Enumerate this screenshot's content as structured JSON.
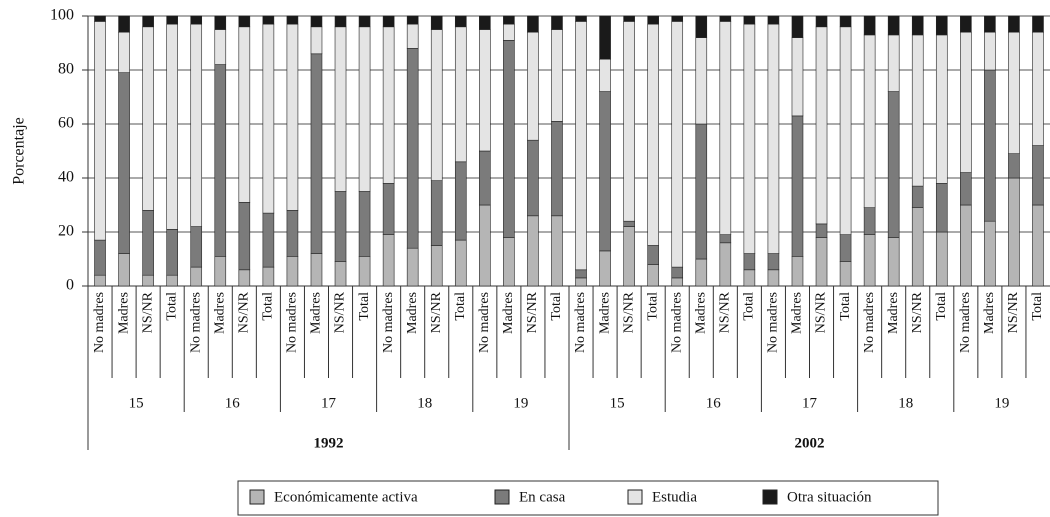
{
  "chart_data": {
    "type": "stacked-bar",
    "y_label": "Porcentaje",
    "categories": [
      "No madres",
      "Madres",
      "NS/NR",
      "Total",
      "No madres",
      "Madres",
      "NS/NR",
      "Total",
      "No madres",
      "Madres",
      "NS/NR",
      "Total",
      "No madres",
      "Madres",
      "NS/NR",
      "Total",
      "No madres",
      "Madres",
      "NS/NR",
      "Total",
      "No madres",
      "Madres",
      "NS/NR",
      "Total",
      "No madres",
      "Madres",
      "NS/NR",
      "Total",
      "No madres",
      "Madres",
      "NS/NR",
      "Total",
      "No madres",
      "Madres",
      "NS/NR",
      "Total",
      "No madres",
      "Madres",
      "NS/NR",
      "Total"
    ],
    "age_groups": [
      "15",
      "16",
      "17",
      "18",
      "19",
      "15",
      "16",
      "17",
      "18",
      "19"
    ],
    "years": [
      "1992",
      "2002"
    ],
    "series": [
      {
        "name": "Económicamente activa",
        "color": "#b5b5b5",
        "values": [
          4,
          12,
          4,
          4,
          7,
          11,
          6,
          7,
          11,
          12,
          9,
          11,
          19,
          14,
          15,
          17,
          30,
          18,
          26,
          26,
          3,
          13,
          22,
          8,
          3,
          10,
          16,
          6,
          6,
          11,
          18,
          9,
          19,
          18,
          29,
          20,
          30,
          24,
          40,
          30
        ]
      },
      {
        "name": "En casa",
        "color": "#7b7b7b",
        "values": [
          13,
          67,
          24,
          17,
          15,
          71,
          25,
          20,
          17,
          74,
          26,
          24,
          19,
          74,
          24,
          29,
          20,
          73,
          28,
          35,
          3,
          59,
          2,
          7,
          4,
          50,
          3,
          6,
          6,
          52,
          5,
          10,
          10,
          54,
          8,
          18,
          12,
          56,
          9,
          22
        ]
      },
      {
        "name": "Estudia",
        "color": "#e4e4e4",
        "values": [
          81,
          15,
          68,
          76,
          75,
          13,
          65,
          70,
          69,
          10,
          61,
          61,
          58,
          9,
          56,
          50,
          45,
          6,
          40,
          34,
          92,
          12,
          74,
          82,
          91,
          32,
          79,
          85,
          85,
          29,
          73,
          77,
          64,
          21,
          56,
          55,
          52,
          14,
          45,
          42
        ]
      },
      {
        "name": "Otra situación",
        "color": "#1a1a1a",
        "values": [
          2,
          6,
          4,
          3,
          3,
          5,
          4,
          3,
          3,
          4,
          4,
          4,
          4,
          3,
          5,
          4,
          5,
          3,
          6,
          5,
          2,
          16,
          2,
          3,
          2,
          8,
          2,
          3,
          3,
          8,
          4,
          4,
          7,
          7,
          7,
          7,
          6,
          6,
          6,
          6
        ]
      }
    ],
    "ylim": [
      0,
      100
    ],
    "yticks": [
      0,
      20,
      40,
      60,
      80,
      100
    ],
    "grid": true
  }
}
